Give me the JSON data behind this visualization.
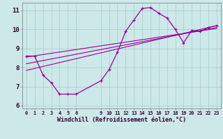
{
  "xlabel": "Windchill (Refroidissement éolien,°C)",
  "bg_color": "#cce8e8",
  "line_color": "#990099",
  "grid_color": "#aacccc",
  "axis_color": "#888899",
  "text_color": "#330033",
  "xlim": [
    -0.5,
    23.5
  ],
  "ylim": [
    5.85,
    11.4
  ],
  "yticks": [
    6,
    7,
    8,
    9,
    10,
    11
  ],
  "xticks": [
    0,
    1,
    2,
    3,
    4,
    5,
    6,
    9,
    10,
    11,
    12,
    13,
    14,
    15,
    16,
    17,
    18,
    19,
    20,
    21,
    22,
    23
  ],
  "main_x": [
    0,
    1,
    2,
    3,
    4,
    5,
    6,
    9,
    10,
    11,
    12,
    13,
    14,
    15,
    16,
    17,
    18,
    19,
    20,
    21,
    22,
    23
  ],
  "main_y": [
    8.6,
    8.6,
    7.6,
    7.2,
    6.6,
    6.6,
    6.6,
    7.3,
    7.9,
    8.8,
    9.9,
    10.5,
    11.1,
    11.15,
    10.85,
    10.6,
    10.0,
    9.3,
    9.95,
    9.9,
    10.1,
    10.2
  ],
  "trend1_x": [
    0,
    23
  ],
  "trend1_y": [
    8.55,
    10.05
  ],
  "trend2_x": [
    0,
    23
  ],
  "trend2_y": [
    8.2,
    10.1
  ],
  "trend3_x": [
    0,
    23
  ],
  "trend3_y": [
    7.85,
    10.2
  ],
  "figsize": [
    3.2,
    2.0
  ],
  "dpi": 100
}
